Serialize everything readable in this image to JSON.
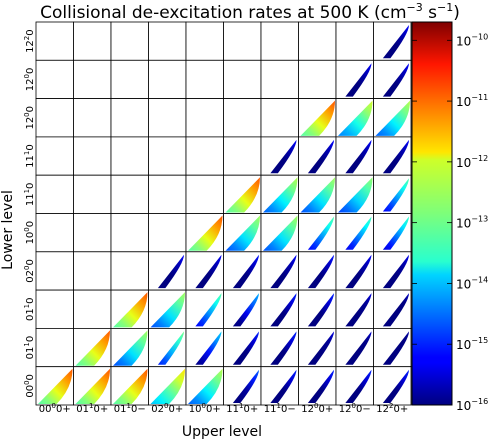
{
  "chart_data": {
    "type": "heatmap",
    "title": "Collisional de-excitation rates at 500 K (cm$^{-3}$ s$^{-1}$)",
    "title_parts": [
      "Collisional de-excitation rates at 500 K (cm",
      "−3",
      " s",
      "−1",
      ")"
    ],
    "xlabel": "Upper level",
    "ylabel": "Lower level",
    "x_levels": [
      {
        "base": "00",
        "sup": "0",
        "sub": "0+"
      },
      {
        "base": "01",
        "sup": "1",
        "sub": "0+"
      },
      {
        "base": "01",
        "sup": "1",
        "sub": "0−"
      },
      {
        "base": "02",
        "sup": "0",
        "sub": "0+"
      },
      {
        "base": "10",
        "sup": "0",
        "sub": "0+"
      },
      {
        "base": "11",
        "sup": "1",
        "sub": "0+"
      },
      {
        "base": "11",
        "sup": "1",
        "sub": "0−"
      },
      {
        "base": "12",
        "sup": "0",
        "sub": "0+"
      },
      {
        "base": "12",
        "sup": "0",
        "sub": "0−"
      },
      {
        "base": "12",
        "sup": "2",
        "sub": "0+"
      }
    ],
    "y_levels_bottom_to_top": [
      {
        "base": "00",
        "sup": "0",
        "sub": "0"
      },
      {
        "base": "01",
        "sup": "1",
        "sub": "0"
      },
      {
        "base": "01",
        "sup": "1",
        "sub": "0"
      },
      {
        "base": "02",
        "sup": "0",
        "sub": "0"
      },
      {
        "base": "10",
        "sup": "0",
        "sub": "0"
      },
      {
        "base": "11",
        "sup": "1",
        "sub": "0"
      },
      {
        "base": "11",
        "sup": "1",
        "sub": "0"
      },
      {
        "base": "12",
        "sup": "0",
        "sub": "0"
      },
      {
        "base": "12",
        "sup": "0",
        "sub": "0"
      },
      {
        "base": "12",
        "sup": "2",
        "sub": "0"
      }
    ],
    "colorbar": {
      "scale": "log",
      "range": [
        1e-16,
        2e-10
      ],
      "ticks": [
        {
          "base": "10",
          "exp": "−10",
          "value": 1e-10
        },
        {
          "base": "10",
          "exp": "−11",
          "value": 1e-11
        },
        {
          "base": "10",
          "exp": "−12",
          "value": 1e-12
        },
        {
          "base": "10",
          "exp": "−13",
          "value": 1e-13
        },
        {
          "base": "10",
          "exp": "−14",
          "value": 1e-14
        },
        {
          "base": "10",
          "exp": "−15",
          "value": 1e-15
        },
        {
          "base": "10",
          "exp": "−16",
          "value": 1e-16
        }
      ],
      "colormap": "jet"
    },
    "cell_peak_log10": [
      [
        -11.0,
        -11.0,
        -11.0,
        -11.9,
        -12.5,
        -14.6,
        -15.0,
        -15.0,
        -15.0,
        -15.0
      ],
      [
        null,
        -11.0,
        -12.6,
        -12.9,
        -13.9,
        -15.0,
        -15.0,
        -15.4,
        -15.5,
        -15.8
      ],
      [
        null,
        null,
        -11.0,
        -12.6,
        -13.1,
        -14.1,
        -15.0,
        -15.0,
        -15.4,
        -15.6
      ],
      [
        null,
        null,
        null,
        -15.2,
        -15.2,
        -15.1,
        -15.2,
        -15.1,
        -15.2,
        -15.3
      ],
      [
        null,
        null,
        null,
        null,
        -11.0,
        -12.6,
        -12.6,
        -13.1,
        -13.2,
        -13.3
      ],
      [
        null,
        null,
        null,
        null,
        null,
        -11.0,
        -12.5,
        -12.6,
        -12.7,
        -13.1
      ],
      [
        null,
        null,
        null,
        null,
        null,
        null,
        -15.2,
        -15.2,
        -15.2,
        -15.2
      ],
      [
        null,
        null,
        null,
        null,
        null,
        null,
        null,
        -11.0,
        -12.3,
        -12.5
      ],
      [
        null,
        null,
        null,
        null,
        null,
        null,
        null,
        null,
        -15.2,
        -15.2
      ],
      [
        null,
        null,
        null,
        null,
        null,
        null,
        null,
        null,
        null,
        -15.2
      ]
    ]
  }
}
